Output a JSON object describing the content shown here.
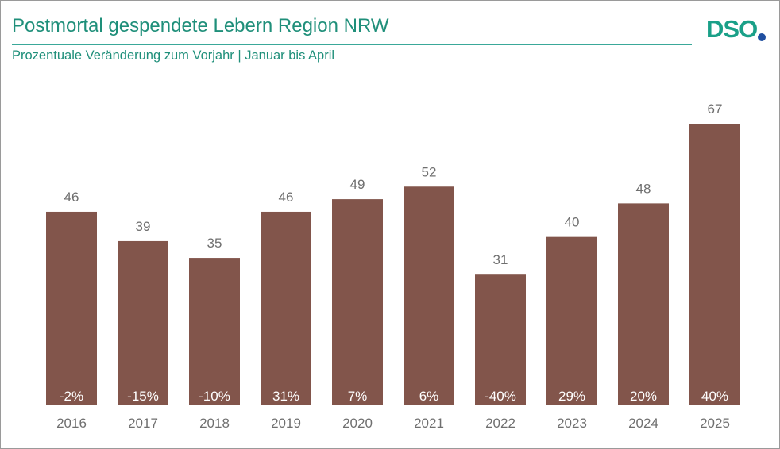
{
  "header": {
    "title": "Postmortal gespendete Lebern Region NRW",
    "subtitle": "Prozentuale Veränderung zum Vorjahr | Januar bis April",
    "logo_text": "DSO"
  },
  "colors": {
    "bar": "#82554b",
    "accent": "#1f8f7a",
    "logo_dot": "#1f4fa0"
  },
  "chart_data": {
    "type": "bar",
    "categories": [
      "2016",
      "2017",
      "2018",
      "2019",
      "2020",
      "2021",
      "2022",
      "2023",
      "2024",
      "2025"
    ],
    "values": [
      46,
      39,
      35,
      46,
      49,
      52,
      31,
      40,
      48,
      67
    ],
    "changes": [
      "-2%",
      "-15%",
      "-10%",
      "31%",
      "7%",
      "6%",
      "-40%",
      "29%",
      "20%",
      "40%"
    ],
    "title": "Postmortal gespendete Lebern Region NRW",
    "subtitle": "Prozentuale Veränderung zum Vorjahr | Januar bis April",
    "ylim": [
      0,
      67
    ],
    "grid": false,
    "legend": "none"
  }
}
